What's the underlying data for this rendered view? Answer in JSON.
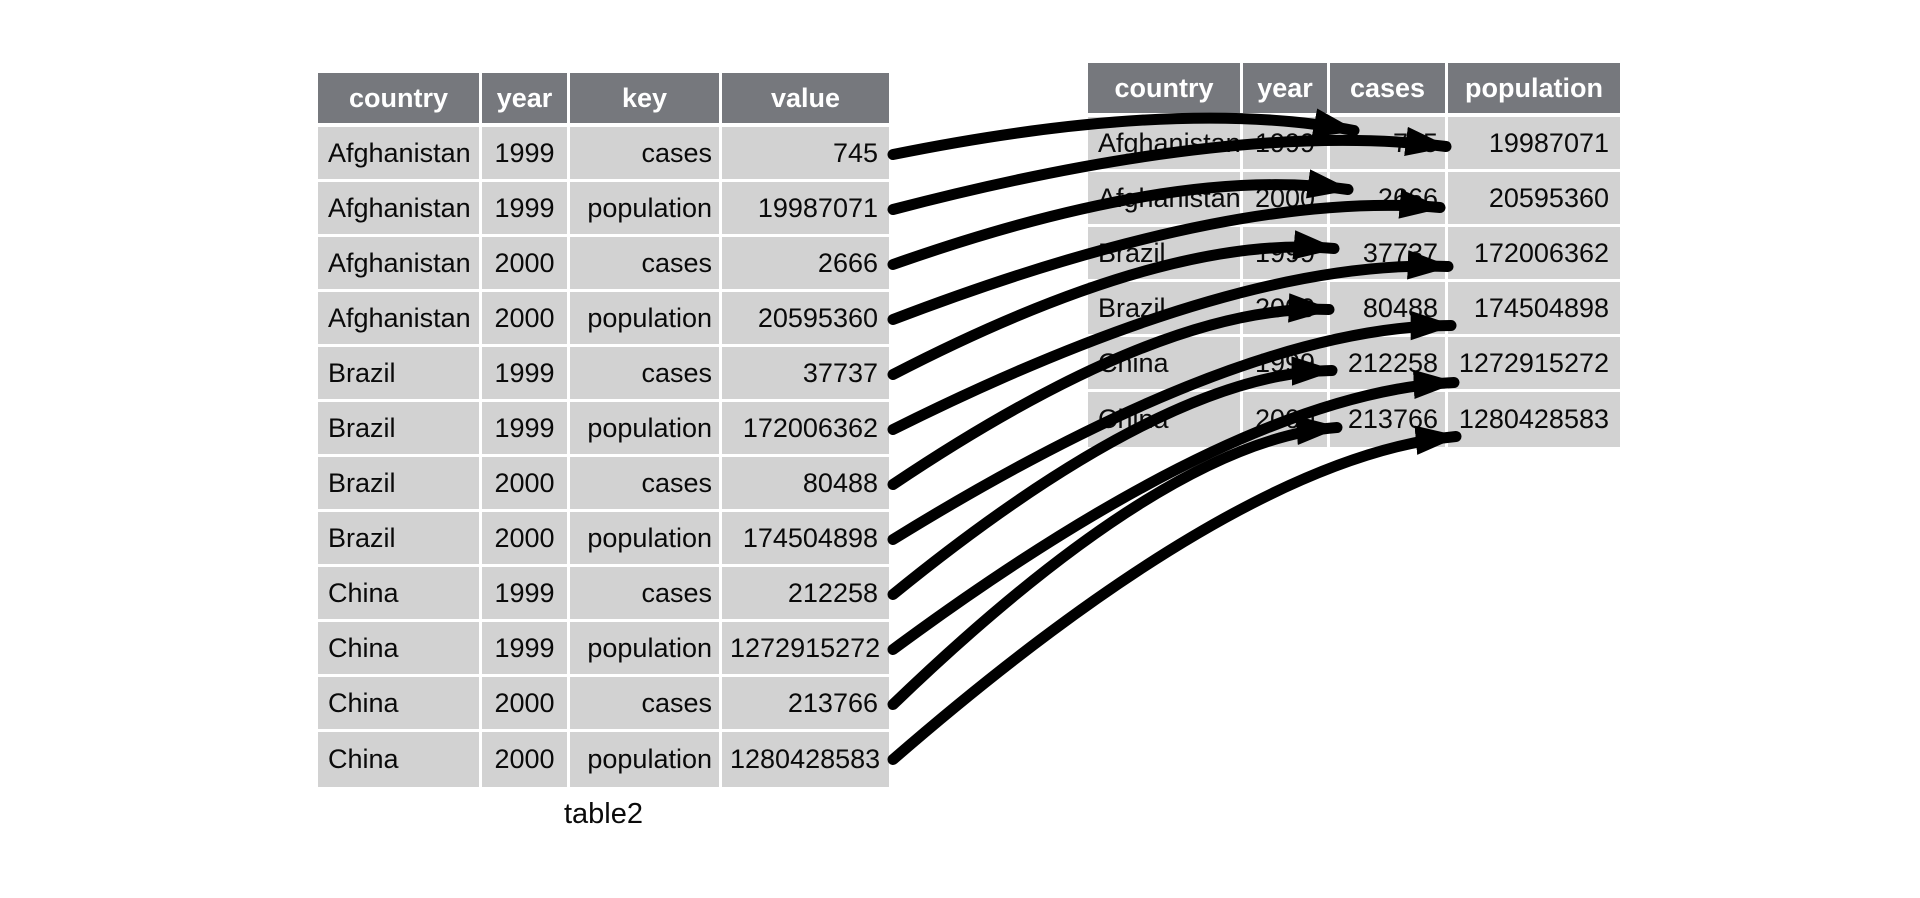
{
  "figure": {
    "label": "table2",
    "colors": {
      "header_bg": "#76787d",
      "header_text": "#ffffff",
      "cell_light": "#d2d2d2",
      "cell_dark_left": "#b0b0b0",
      "cell_dark_right": "#ababab",
      "arrow": "#000000",
      "background": "#ffffff"
    }
  },
  "left_table": {
    "caption": "table2",
    "columns": [
      "country",
      "year",
      "key",
      "value"
    ],
    "rows": [
      {
        "country": "Afghanistan",
        "year": "1999",
        "key": "cases",
        "value": "745",
        "value_highlight": true
      },
      {
        "country": "Afghanistan",
        "year": "1999",
        "key": "population",
        "value": "19987071",
        "value_highlight": false
      },
      {
        "country": "Afghanistan",
        "year": "2000",
        "key": "cases",
        "value": "2666",
        "value_highlight": true
      },
      {
        "country": "Afghanistan",
        "year": "2000",
        "key": "population",
        "value": "20595360",
        "value_highlight": false
      },
      {
        "country": "Brazil",
        "year": "1999",
        "key": "cases",
        "value": "37737",
        "value_highlight": true
      },
      {
        "country": "Brazil",
        "year": "1999",
        "key": "population",
        "value": "172006362",
        "value_highlight": false
      },
      {
        "country": "Brazil",
        "year": "2000",
        "key": "cases",
        "value": "80488",
        "value_highlight": true
      },
      {
        "country": "Brazil",
        "year": "2000",
        "key": "population",
        "value": "174504898",
        "value_highlight": false
      },
      {
        "country": "China",
        "year": "1999",
        "key": "cases",
        "value": "212258",
        "value_highlight": true
      },
      {
        "country": "China",
        "year": "1999",
        "key": "population",
        "value": "1272915272",
        "value_highlight": false
      },
      {
        "country": "China",
        "year": "2000",
        "key": "cases",
        "value": "213766",
        "value_highlight": true
      },
      {
        "country": "China",
        "year": "2000",
        "key": "population",
        "value": "1280428583",
        "value_highlight": false
      }
    ]
  },
  "right_table": {
    "columns": [
      "country",
      "year",
      "cases",
      "population"
    ],
    "highlight_column": "cases",
    "rows": [
      {
        "country": "Afghanistan",
        "year": "1999",
        "cases": "745",
        "population": "19987071"
      },
      {
        "country": "Afghanistan",
        "year": "2000",
        "cases": "2666",
        "population": "20595360"
      },
      {
        "country": "Brazil",
        "year": "1999",
        "cases": "37737",
        "population": "172006362"
      },
      {
        "country": "Brazil",
        "year": "2000",
        "cases": "80488",
        "population": "174504898"
      },
      {
        "country": "China",
        "year": "1999",
        "cases": "212258",
        "population": "1272915272"
      },
      {
        "country": "China",
        "year": "2000",
        "cases": "213766",
        "population": "1280428583"
      }
    ]
  },
  "arrows": [
    {
      "from_row": 0,
      "to_row": 0,
      "to_col": "cases"
    },
    {
      "from_row": 1,
      "to_row": 0,
      "to_col": "population"
    },
    {
      "from_row": 2,
      "to_row": 1,
      "to_col": "cases"
    },
    {
      "from_row": 3,
      "to_row": 1,
      "to_col": "population"
    },
    {
      "from_row": 4,
      "to_row": 2,
      "to_col": "cases"
    },
    {
      "from_row": 5,
      "to_row": 2,
      "to_col": "population"
    },
    {
      "from_row": 6,
      "to_row": 3,
      "to_col": "cases"
    },
    {
      "from_row": 7,
      "to_row": 3,
      "to_col": "population"
    },
    {
      "from_row": 8,
      "to_row": 4,
      "to_col": "cases"
    },
    {
      "from_row": 9,
      "to_row": 4,
      "to_col": "population"
    },
    {
      "from_row": 10,
      "to_row": 5,
      "to_col": "cases"
    },
    {
      "from_row": 11,
      "to_row": 5,
      "to_col": "population"
    }
  ]
}
